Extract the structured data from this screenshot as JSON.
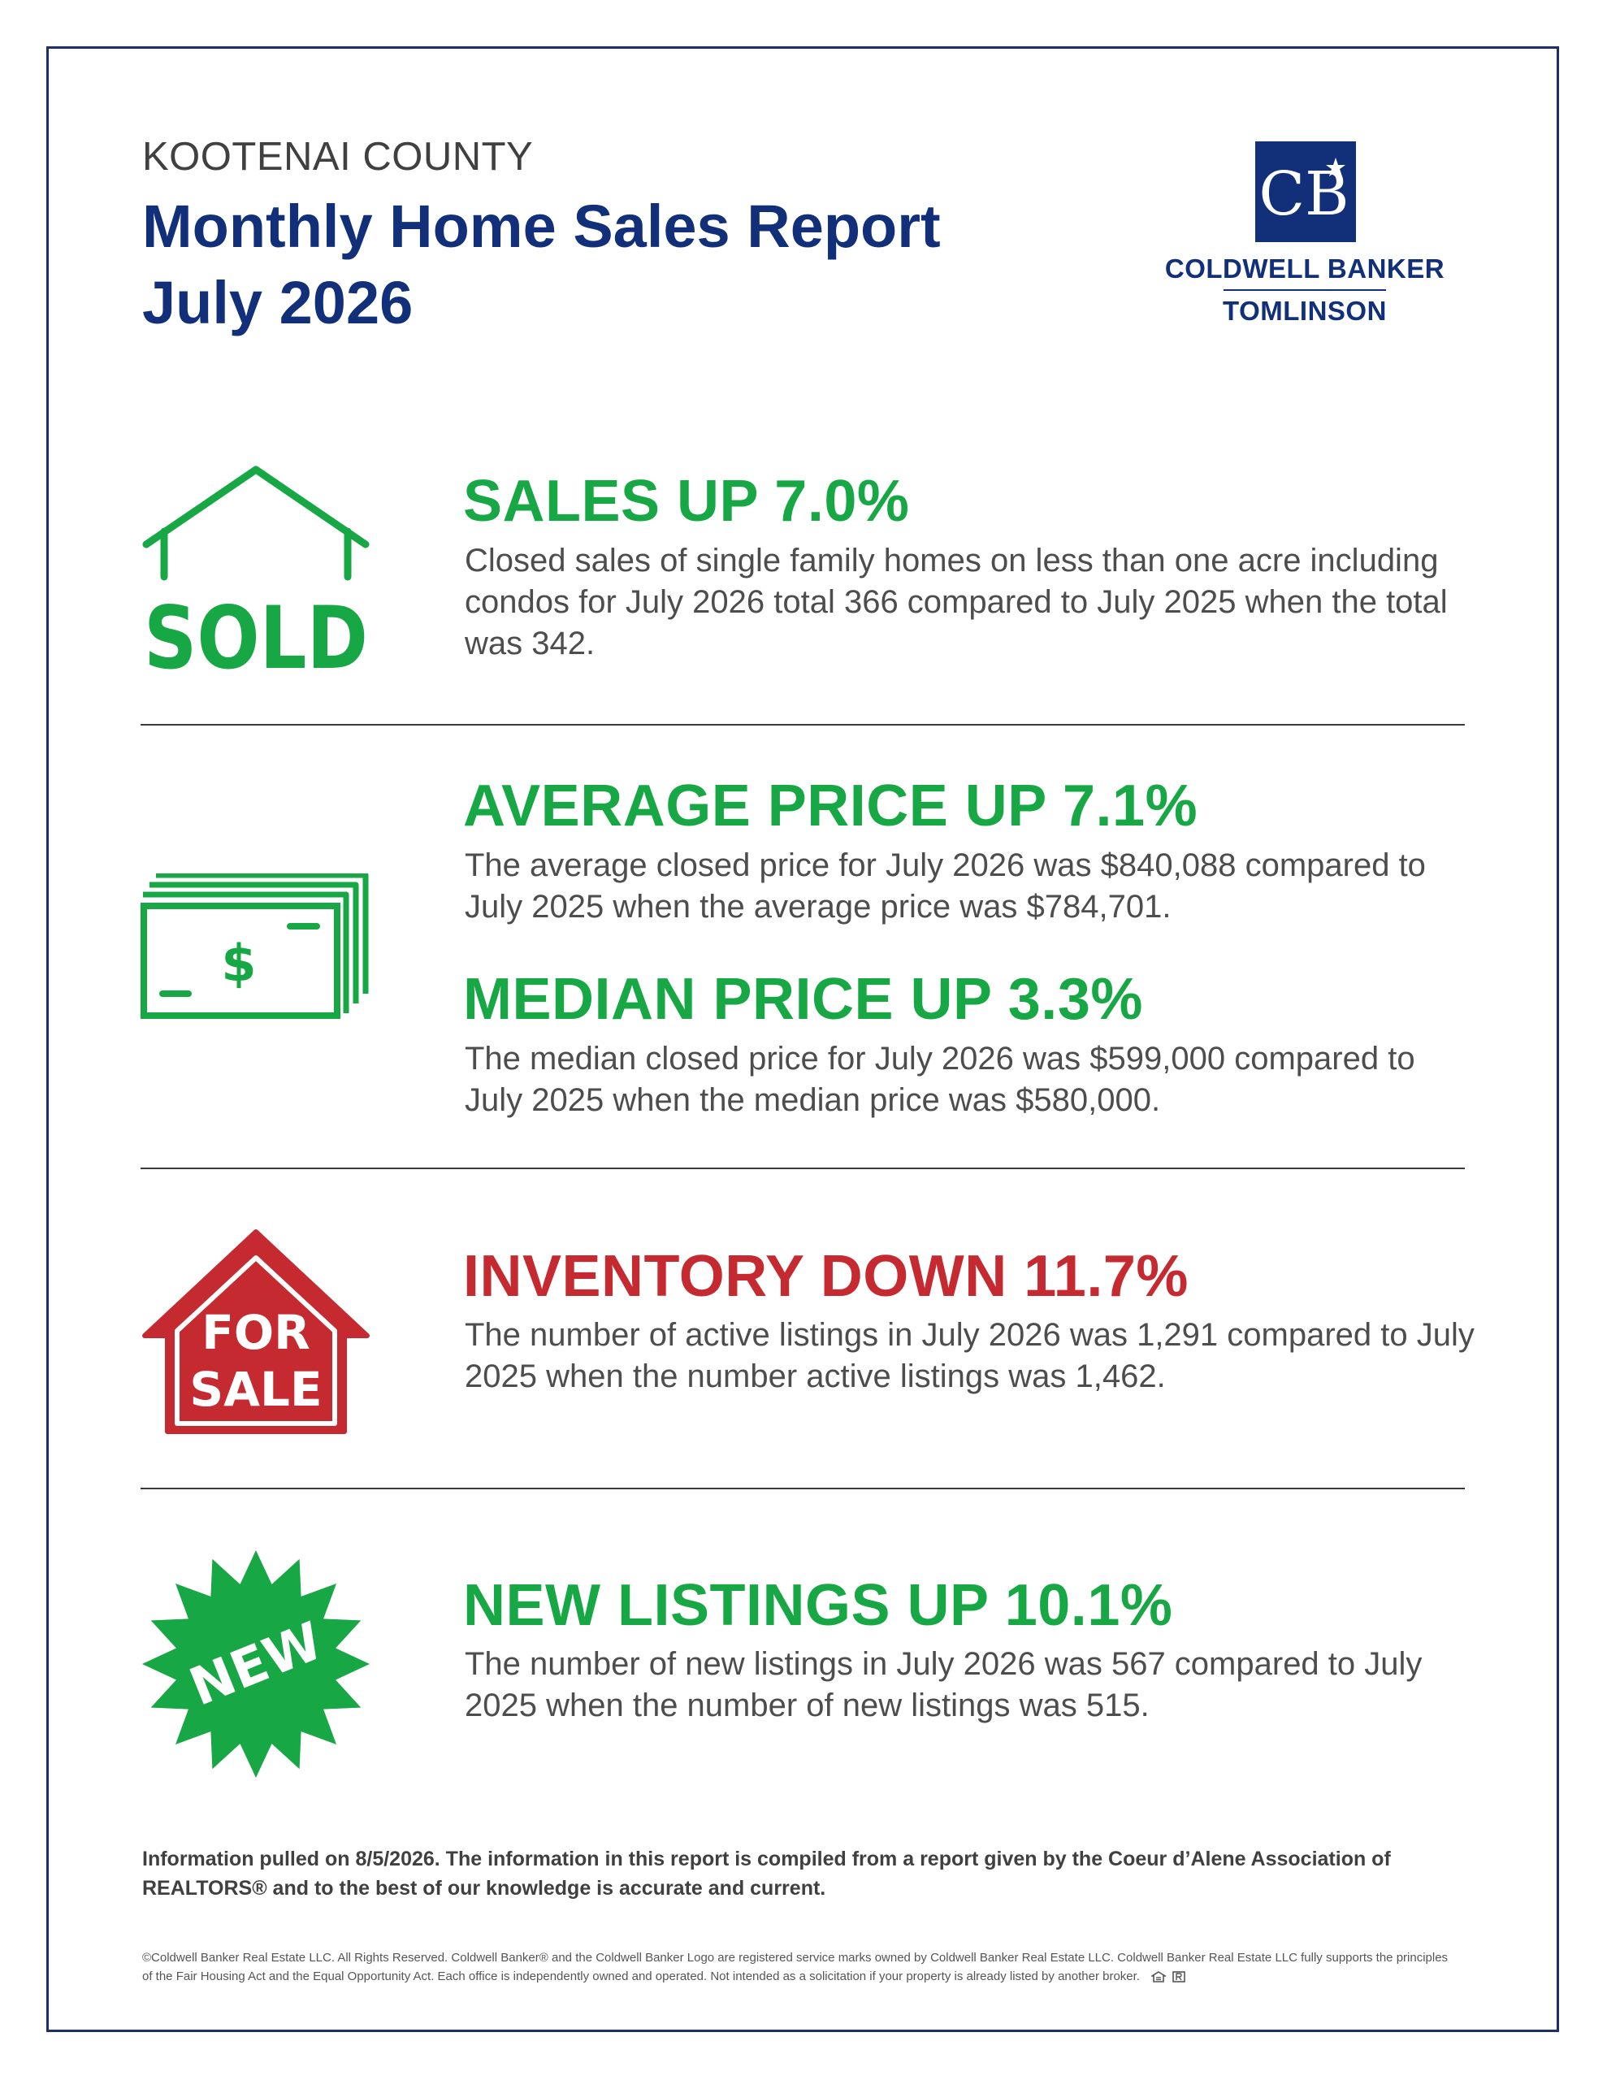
{
  "header": {
    "county": "KOOTENAI COUNTY",
    "title_line1": "Monthly Home Sales Report",
    "title_line2": "July 2026"
  },
  "logo": {
    "monogram": "CB",
    "name": "COLDWELL BANKER",
    "office": "TOMLINSON"
  },
  "sections": {
    "sales": {
      "icon": "sold-house-icon",
      "icon_text": "SOLD",
      "headline": "SALES UP 7.0%",
      "text": "Closed sales of single family homes on less than one acre including condos for July 2026 total 366 compared to July 2025 when the total was 342."
    },
    "average_price": {
      "icon": "money-stack-icon",
      "icon_text": "$",
      "headline": "AVERAGE PRICE UP 7.1%",
      "text": "The average closed price for July 2026 was $840,088 compared to July 2025 when the average price was $784,701."
    },
    "median_price": {
      "headline": "MEDIAN PRICE UP 3.3%",
      "text": "The median closed price for July 2026 was $599,000 compared to July 2025 when the median price was $580,000."
    },
    "inventory": {
      "icon": "for-sale-house-icon",
      "icon_text_line1": "FOR",
      "icon_text_line2": "SALE",
      "headline": "INVENTORY DOWN 11.7%",
      "text": "The number of active listings in July 2026 was 1,291 compared to July 2025 when the number active listings was 1,462."
    },
    "new_listings": {
      "icon": "new-starburst-icon",
      "icon_text": "NEW",
      "headline": "NEW LISTINGS UP 10.1%",
      "text": "The number of new listings in July 2026 was 567 compared to July 2025 when the number of new listings was 515."
    }
  },
  "footer": {
    "note": "Information pulled on 8/5/2026. The information in this report is compiled from a report given by the Coeur d’Alene Association of REALTORS® and to the best of our knowledge is accurate and current.",
    "legal": "©Coldwell Banker Real Estate LLC. All Rights Reserved. Coldwell Banker® and the Coldwell Banker Logo are registered service marks owned by Coldwell Banker Real Estate LLC. Coldwell Banker Real Estate LLC fully supports the principles of the Fair Housing Act and the Equal Opportunity Act. Each office is independently owned and operated. Not intended as a solicitation if your property is already listed by another broker."
  },
  "colors": {
    "navy": "#12307a",
    "green": "#17a745",
    "red": "#c52a30"
  }
}
